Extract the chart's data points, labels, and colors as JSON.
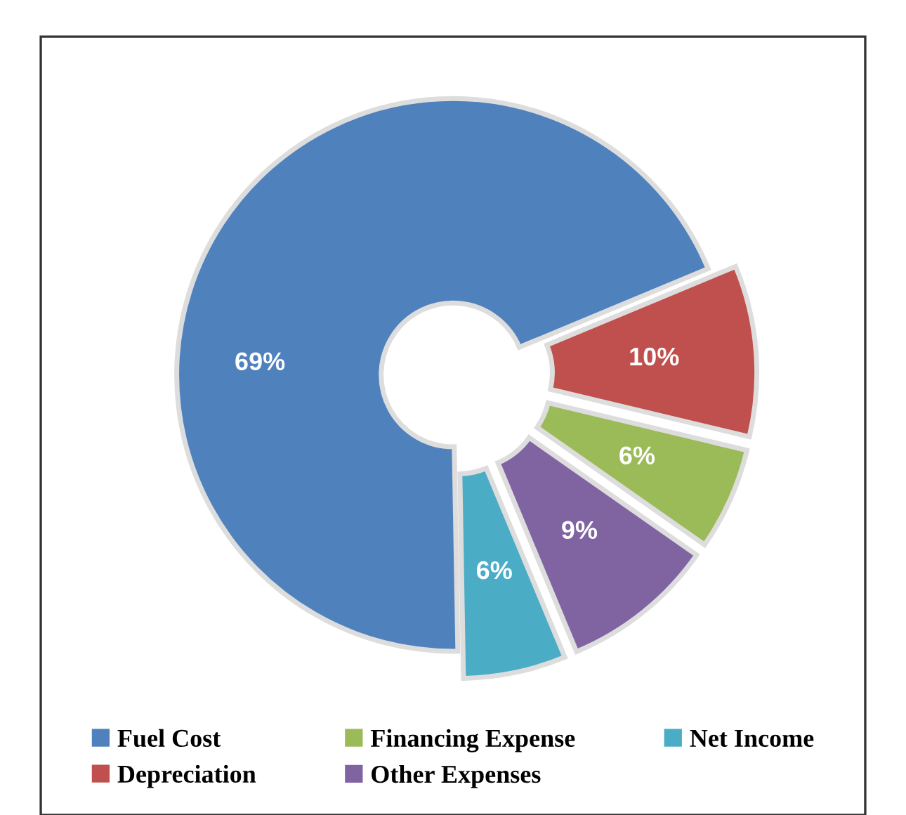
{
  "chart_data": {
    "type": "donut",
    "categories": [
      "Fuel Cost",
      "Depreciation",
      "Financing Expense",
      "Other Expenses",
      "Net Income"
    ],
    "values": [
      69,
      10,
      6,
      9,
      6
    ],
    "colors": [
      "#4f81bd",
      "#c0504d",
      "#9bbb59",
      "#8064a2",
      "#4bacc6"
    ],
    "value_labels": [
      "69%",
      "10%",
      "6%",
      "9%",
      "6%"
    ],
    "legend": "bottom"
  }
}
